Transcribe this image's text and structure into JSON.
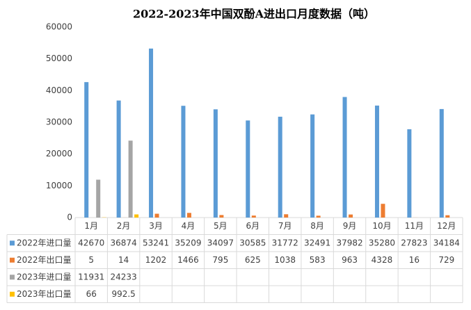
{
  "chart_data": {
    "type": "bar",
    "title": "2022-2023年中国双酚A进出口月度数据（吨）",
    "categories": [
      "1月",
      "2月",
      "3月",
      "4月",
      "5月",
      "6月",
      "7月",
      "8月",
      "9月",
      "10月",
      "11月",
      "12月"
    ],
    "series": [
      {
        "name": "2022年进口量",
        "color": "#5B9BD5",
        "values": [
          42670,
          36874,
          53241,
          35209,
          34097,
          30585,
          31772,
          32491,
          37982,
          35280,
          27823,
          34184
        ]
      },
      {
        "name": "2022年出口量",
        "color": "#ED7D31",
        "values": [
          5,
          14,
          1202,
          1466,
          795,
          625,
          1038,
          583,
          963,
          4328,
          16,
          729
        ]
      },
      {
        "name": "2023年进口量",
        "color": "#A5A5A5",
        "values": [
          11931,
          24233,
          null,
          null,
          null,
          null,
          null,
          null,
          null,
          null,
          null,
          null
        ]
      },
      {
        "name": "2023年出口量",
        "color": "#FFC000",
        "values": [
          66,
          992.5,
          null,
          null,
          null,
          null,
          null,
          null,
          null,
          null,
          null,
          null
        ]
      }
    ],
    "ylim": [
      0,
      60000
    ],
    "yticks": [
      0,
      10000,
      20000,
      30000,
      40000,
      50000,
      60000
    ],
    "grid": false
  }
}
